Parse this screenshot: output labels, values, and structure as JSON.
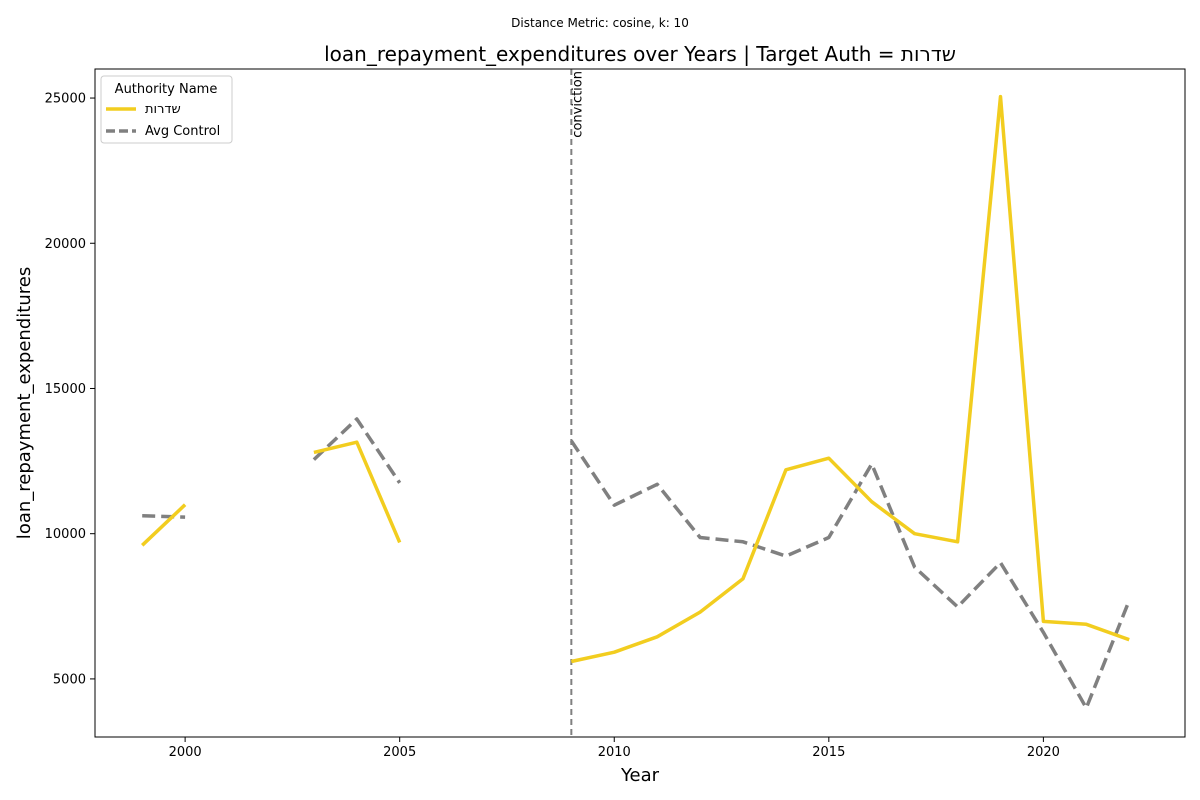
{
  "chart_data": {
    "type": "line",
    "suptitle": "Distance Metric: cosine, k: 10",
    "title": "loan_repayment_expenditures over Years | Target Auth = שדרות",
    "xlabel": "Year",
    "ylabel": "loan_repayment_expenditures",
    "xlim": [
      1997.9,
      2023.3
    ],
    "ylim": [
      3000,
      26000
    ],
    "xticks": [
      2000,
      2005,
      2010,
      2015,
      2020
    ],
    "yticks": [
      5000,
      10000,
      15000,
      20000,
      25000
    ],
    "grid": false,
    "legend": {
      "title": "Authority Name",
      "placement": "top-left"
    },
    "series": [
      {
        "name": "שדרות",
        "color": "#f2cd1f",
        "style": "solid",
        "points": [
          [
            1999,
            9600
          ],
          [
            2000,
            11000
          ],
          [
            2001,
            null
          ],
          [
            2002,
            null
          ],
          [
            2003,
            12800
          ],
          [
            2004,
            13150
          ],
          [
            2005,
            9700
          ],
          [
            2006,
            null
          ],
          [
            2007,
            null
          ],
          [
            2008,
            null
          ],
          [
            2009,
            5600
          ],
          [
            2010,
            5920
          ],
          [
            2011,
            6450
          ],
          [
            2012,
            7300
          ],
          [
            2013,
            8450
          ],
          [
            2014,
            12200
          ],
          [
            2015,
            12600
          ],
          [
            2016,
            11100
          ],
          [
            2017,
            10000
          ],
          [
            2018,
            9720
          ],
          [
            2019,
            25050
          ],
          [
            2020,
            6980
          ],
          [
            2021,
            6880
          ],
          [
            2022,
            6350
          ]
        ]
      },
      {
        "name": "Avg Control",
        "color": "#808080",
        "style": "dashed",
        "points": [
          [
            1999,
            10620
          ],
          [
            2000,
            10570
          ],
          [
            2001,
            null
          ],
          [
            2002,
            null
          ],
          [
            2003,
            12550
          ],
          [
            2004,
            13950
          ],
          [
            2005,
            11750
          ],
          [
            2006,
            null
          ],
          [
            2007,
            null
          ],
          [
            2008,
            null
          ],
          [
            2009,
            13200
          ],
          [
            2010,
            10980
          ],
          [
            2011,
            11700
          ],
          [
            2012,
            9870
          ],
          [
            2013,
            9720
          ],
          [
            2014,
            9230
          ],
          [
            2015,
            9870
          ],
          [
            2016,
            12400
          ],
          [
            2017,
            8850
          ],
          [
            2018,
            7480
          ],
          [
            2019,
            9000
          ],
          [
            2020,
            6600
          ],
          [
            2021,
            4000
          ],
          [
            2022,
            7700
          ]
        ]
      }
    ],
    "vline": {
      "x": 2009,
      "label": "conviction",
      "color": "#808080"
    }
  }
}
